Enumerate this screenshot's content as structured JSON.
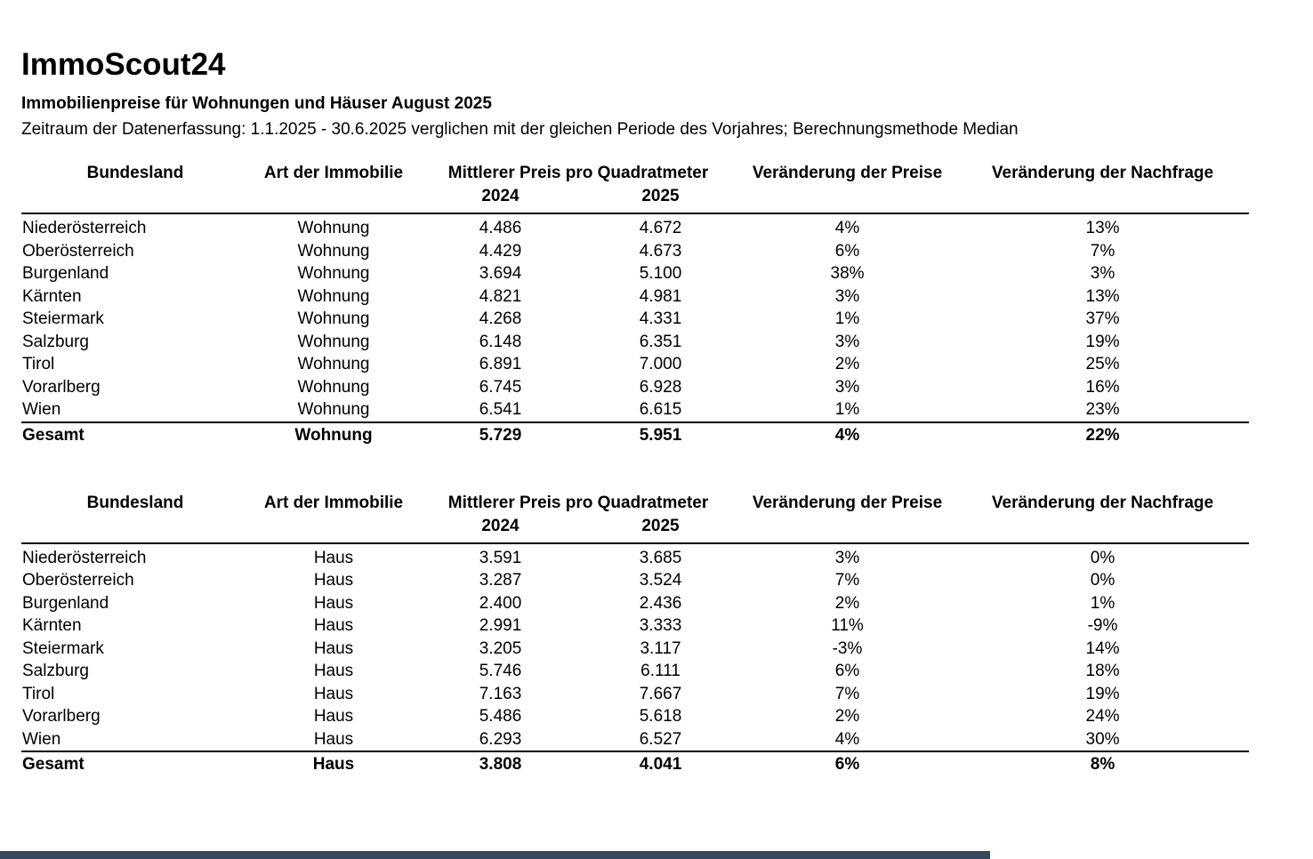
{
  "page": {
    "title": "ImmoScout24",
    "subtitle": "Immobilienpreise für Wohnungen und Häuser August 2025",
    "note": "Zeitraum der Datenerfassung: 1.1.2025 - 30.6.2025 verglichen mit der gleichen Periode des Vorjahres; Berechnungsmethode Median"
  },
  "headers": {
    "bundesland": "Bundesland",
    "immobilie": "Art der Immobilie",
    "preis_group": "Mittlerer Preis pro Quadratmeter",
    "year_2024": "2024",
    "year_2025": "2025",
    "preis_change": "Veränderung der Preise",
    "nachfrage_change": "Veränderung der Nachfrage"
  },
  "tables": [
    {
      "rows": [
        [
          "Niederösterreich",
          "Wohnung",
          "4.486",
          "4.672",
          "4%",
          "13%"
        ],
        [
          "Oberösterreich",
          "Wohnung",
          "4.429",
          "4.673",
          "6%",
          "7%"
        ],
        [
          "Burgenland",
          "Wohnung",
          "3.694",
          "5.100",
          "38%",
          "3%"
        ],
        [
          "Kärnten",
          "Wohnung",
          "4.821",
          "4.981",
          "3%",
          "13%"
        ],
        [
          "Steiermark",
          "Wohnung",
          "4.268",
          "4.331",
          "1%",
          "37%"
        ],
        [
          "Salzburg",
          "Wohnung",
          "6.148",
          "6.351",
          "3%",
          "19%"
        ],
        [
          "Tirol",
          "Wohnung",
          "6.891",
          "7.000",
          "2%",
          "25%"
        ],
        [
          "Vorarlberg",
          "Wohnung",
          "6.745",
          "6.928",
          "3%",
          "16%"
        ],
        [
          "Wien",
          "Wohnung",
          "6.541",
          "6.615",
          "1%",
          "23%"
        ]
      ],
      "total": [
        "Gesamt",
        "Wohnung",
        "5.729",
        "5.951",
        "4%",
        "22%"
      ]
    },
    {
      "rows": [
        [
          "Niederösterreich",
          "Haus",
          "3.591",
          "3.685",
          "3%",
          "0%"
        ],
        [
          "Oberösterreich",
          "Haus",
          "3.287",
          "3.524",
          "7%",
          "0%"
        ],
        [
          "Burgenland",
          "Haus",
          "2.400",
          "2.436",
          "2%",
          "1%"
        ],
        [
          "Kärnten",
          "Haus",
          "2.991",
          "3.333",
          "11%",
          "-9%"
        ],
        [
          "Steiermark",
          "Haus",
          "3.205",
          "3.117",
          "-3%",
          "14%"
        ],
        [
          "Salzburg",
          "Haus",
          "5.746",
          "6.111",
          "6%",
          "18%"
        ],
        [
          "Tirol",
          "Haus",
          "7.163",
          "7.667",
          "7%",
          "19%"
        ],
        [
          "Vorarlberg",
          "Haus",
          "5.486",
          "5.618",
          "2%",
          "24%"
        ],
        [
          "Wien",
          "Haus",
          "6.293",
          "6.527",
          "4%",
          "30%"
        ]
      ],
      "total": [
        "Gesamt",
        "Haus",
        "3.808",
        "4.041",
        "6%",
        "8%"
      ]
    }
  ],
  "colors": {
    "background": "#ffffff",
    "text": "#000000",
    "footer_bar": "#37475c"
  }
}
